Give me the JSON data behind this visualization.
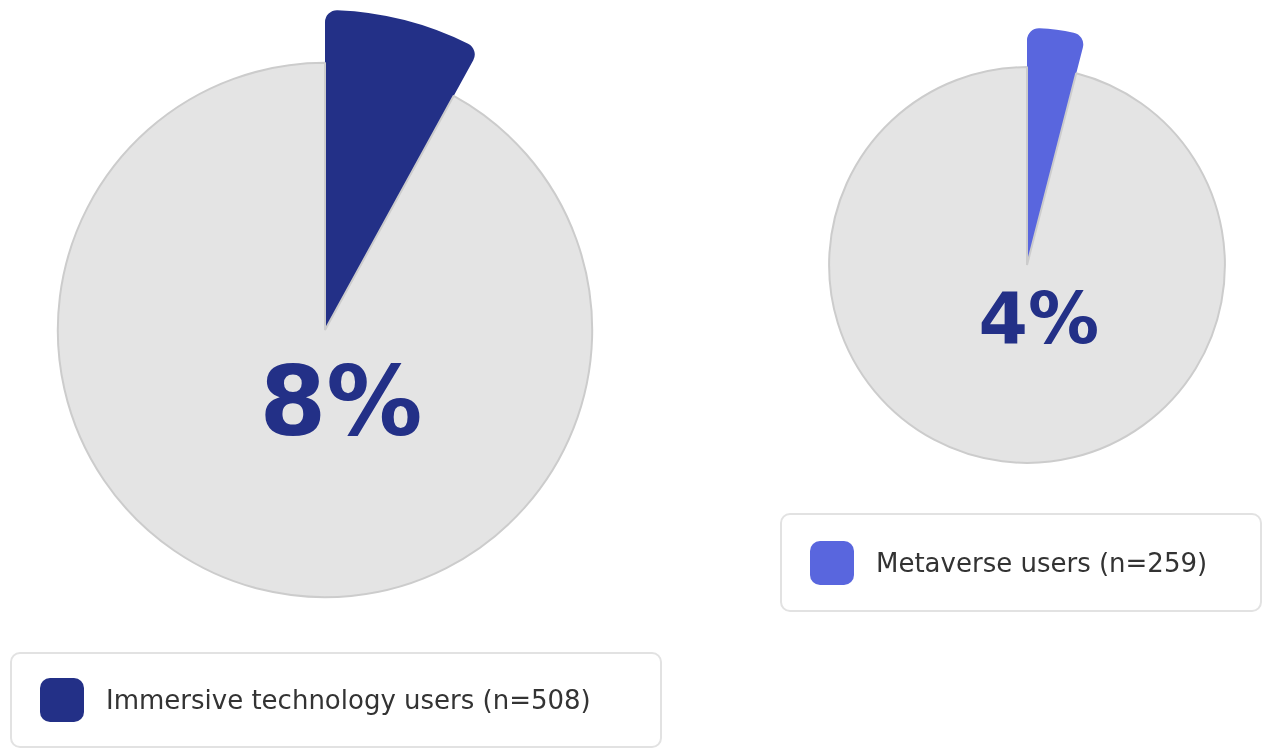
{
  "chart_data": [
    {
      "type": "pie",
      "categories": [
        "Immersive technology users (n=508)",
        null
      ],
      "values": [
        8,
        92
      ],
      "colors": [
        "#233087",
        "#e4e4e4"
      ],
      "annotations": [
        "8%"
      ],
      "legend": "bottom"
    },
    {
      "type": "pie",
      "categories": [
        "Metaverse users (n=259)",
        null
      ],
      "values": [
        4,
        96
      ],
      "colors": [
        "#5966de",
        "#e4e4e4"
      ],
      "annotations": [
        "4%"
      ],
      "legend": "bottom"
    }
  ]
}
